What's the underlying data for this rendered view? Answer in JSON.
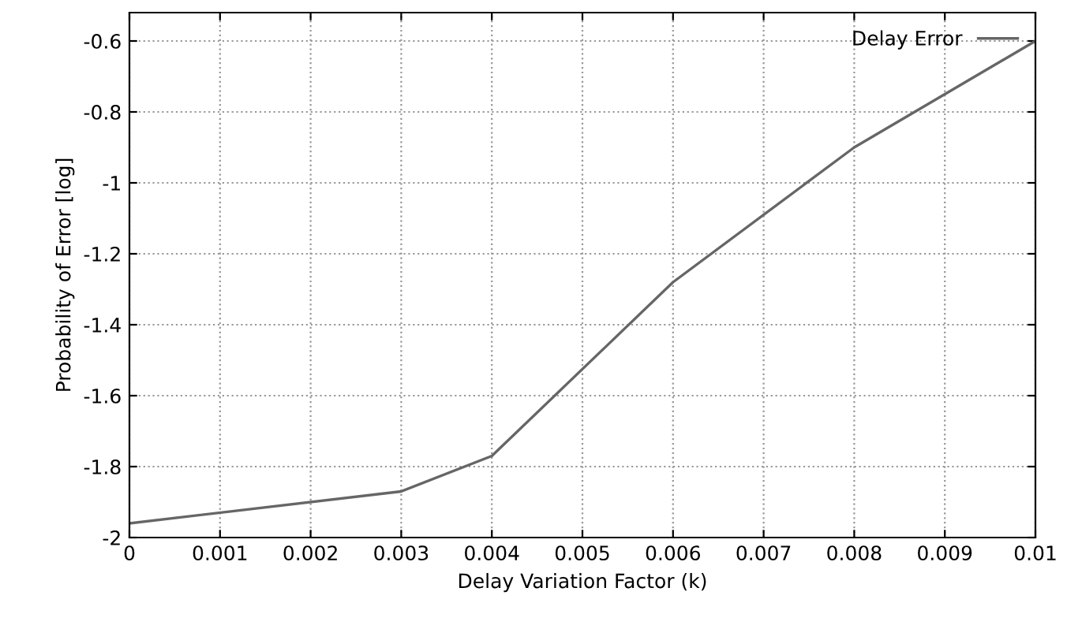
{
  "chart_data": {
    "type": "line",
    "xlabel": "Delay Variation Factor (k)",
    "ylabel": "Probability of Error [log]",
    "x": [
      0,
      0.003,
      0.004,
      0.006,
      0.008,
      0.01
    ],
    "series": [
      {
        "name": "Delay Error",
        "color": "#666666",
        "values": [
          -1.96,
          -1.87,
          -1.77,
          -1.28,
          -0.9,
          -0.6
        ]
      }
    ],
    "xlim": [
      0,
      0.01
    ],
    "xticks": [
      0,
      0.001,
      0.002,
      0.003,
      0.004,
      0.005,
      0.006,
      0.007,
      0.008,
      0.009,
      0.01
    ],
    "ylim": [
      -2,
      -0.52
    ],
    "yticks": [
      -2,
      -1.8,
      -1.6,
      -1.4,
      -1.2,
      -1,
      -0.8,
      -0.6
    ],
    "grid": true,
    "legend": "top right",
    "line_style": "solid",
    "marker": "none"
  }
}
